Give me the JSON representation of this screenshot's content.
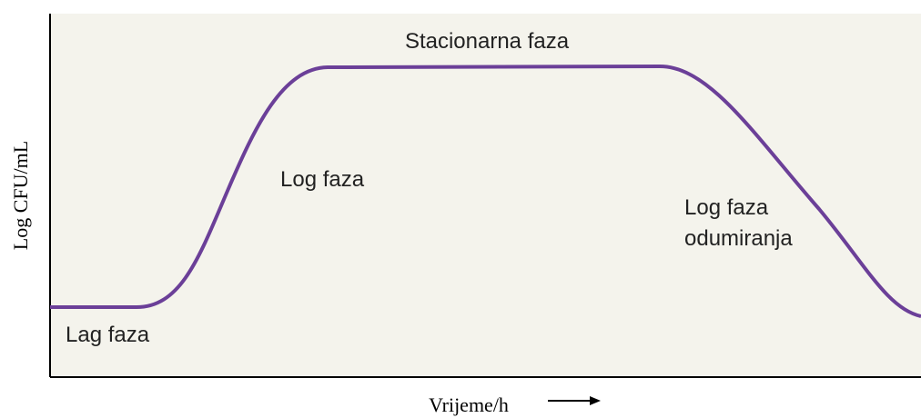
{
  "axes": {
    "y_label": "Log CFU/mL",
    "x_label": "Vrijeme/h"
  },
  "phases": {
    "lag": "Lag faza",
    "log": "Log faza",
    "stationary": "Stacionarna faza",
    "death": [
      "Log faza",
      "odumiranja"
    ]
  }
}
